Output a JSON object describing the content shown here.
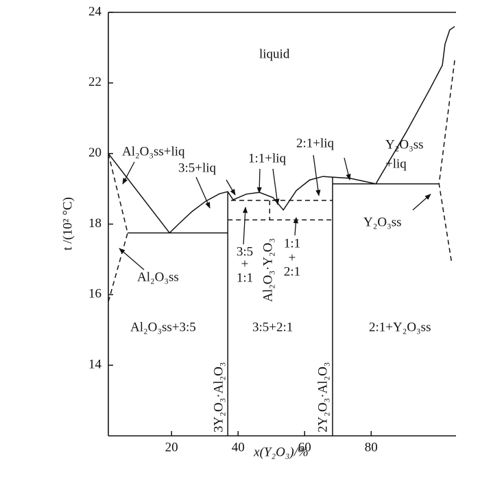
{
  "chart_data": {
    "type": "phase",
    "x_label": "x(Y₂O₃)/%",
    "y_label": "t /(10² °C)",
    "xlim": [
      1,
      105.5
    ],
    "ylim": [
      12,
      24
    ],
    "xticks": [
      20,
      40,
      60,
      80
    ],
    "yticks": [
      14,
      16,
      18,
      20,
      22,
      24
    ],
    "lines": [
      {
        "style": "solid",
        "x": [
          1,
          19.4
        ],
        "y": [
          20,
          17.75
        ]
      },
      {
        "style": "solid",
        "x": [
          6.8,
          36.9
        ],
        "y": [
          17.75,
          17.75
        ]
      },
      {
        "style": "solid",
        "x": [
          19.4,
          22.0,
          26.2,
          30.3,
          34.4,
          36.9,
          38.5,
          42.5,
          46.4,
          50.5,
          53.6,
          57.5,
          61.5,
          65.5,
          68.4,
          73.5,
          77.5,
          81.4,
          90.5,
          97.5,
          101.4,
          102.2,
          103.6,
          105.1
        ],
        "y": [
          17.75,
          17.99,
          18.36,
          18.65,
          18.86,
          18.92,
          18.69,
          18.85,
          18.9,
          18.75,
          18.4,
          18.95,
          19.25,
          19.35,
          19.33,
          19.3,
          19.22,
          19.14,
          20.6,
          21.8,
          22.5,
          23.1,
          23.5,
          23.6
        ]
      },
      {
        "style": "solid",
        "x": [
          68.4,
          100.4
        ],
        "y": [
          19.14,
          19.14
        ]
      },
      {
        "style": "solid",
        "x": [
          36.9,
          36.9
        ],
        "y": [
          18.92,
          12
        ]
      },
      {
        "style": "solid",
        "x": [
          68.4,
          68.4
        ],
        "y": [
          19.33,
          12
        ]
      },
      {
        "style": "dashed",
        "x": [
          1,
          6.8,
          1
        ],
        "y": [
          20,
          17.75,
          15.8
        ]
      },
      {
        "style": "dashed",
        "x": [
          105.1,
          100.4,
          104.1
        ],
        "y": [
          22.64,
          19.14,
          16.96
        ]
      },
      {
        "style": "dashed",
        "x": [
          37.9,
          68.4
        ],
        "y": [
          18.67,
          18.67
        ]
      },
      {
        "style": "dashed",
        "x": [
          36.9,
          68.4
        ],
        "y": [
          18.12,
          18.12
        ]
      },
      {
        "style": "dashed",
        "x": [
          49.5,
          49.5
        ],
        "y": [
          18.67,
          18.12
        ]
      }
    ],
    "labels": {
      "liquid": "liquid",
      "al_liq": "Al₂O₃ss+liq",
      "l35": "3:5+liq",
      "l11": "1:1+liq",
      "l21": "2:1+liq",
      "y_liq_1": "Y₂O₃ss",
      "y_liq_2": "+liq",
      "yss": "Y₂O₃ss",
      "alss": "Al₂O₃ss",
      "a1": "3:5",
      "a2": "+",
      "a3": "1:1",
      "b1": "1:1",
      "b2": "+",
      "b3": "2:1",
      "c11": "Al₂O₃·Y₂O₃",
      "r1": "Al₂O₃ss+3:5",
      "r2": "3:5+2:1",
      "r3": "2:1+Y₂O₃ss",
      "c35": "3Y₂O₃·Al₂O₃",
      "c21": "2Y₂O₃·Al₂O₃"
    }
  }
}
